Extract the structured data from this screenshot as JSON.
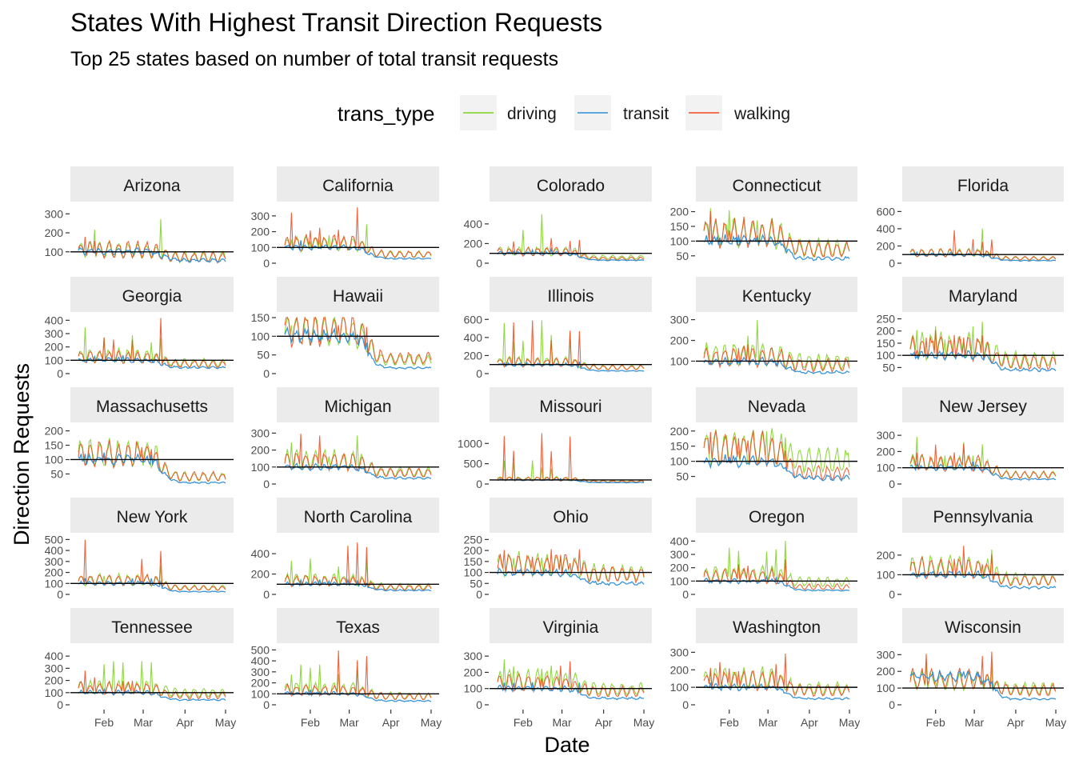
{
  "chart_data": {
    "type": "line",
    "title": "States With Highest Transit Direction Requests",
    "subtitle": "Top 25 states based on number of total transit requests",
    "xlabel": "Date",
    "ylabel": "Direction Requests",
    "legend": {
      "title": "trans_type",
      "position": "top",
      "items": [
        {
          "name": "driving",
          "color": "#7CD11E"
        },
        {
          "name": "transit",
          "color": "#2C8FD6"
        },
        {
          "name": "walking",
          "color": "#F0481A"
        }
      ]
    },
    "reference_line": 100,
    "x_ticks": [
      "Feb",
      "Mar",
      "Apr",
      "May"
    ],
    "x_range": [
      "2020-01-13",
      "2020-05-01"
    ],
    "grid": false,
    "panels": [
      {
        "state": "Arizona",
        "ylim": [
          40,
          335
        ],
        "yticks": [
          100,
          200,
          300
        ],
        "series": [
          {
            "name": "driving",
            "before": 105,
            "after": 72,
            "spike": 330
          },
          {
            "name": "transit",
            "before": 102,
            "after": 55,
            "spike": 120
          },
          {
            "name": "walking",
            "before": 110,
            "after": 70,
            "spike": 210
          }
        ]
      },
      {
        "state": "California",
        "ylim": [
          0,
          355
        ],
        "yticks": [
          0,
          100,
          200,
          300
        ],
        "series": [
          {
            "name": "driving",
            "before": 120,
            "after": 55,
            "spike": 250
          },
          {
            "name": "transit",
            "before": 100,
            "after": 30,
            "spike": 150
          },
          {
            "name": "walking",
            "before": 125,
            "after": 55,
            "spike": 355
          }
        ]
      },
      {
        "state": "Colorado",
        "ylim": [
          0,
          570
        ],
        "yticks": [
          0,
          200,
          400
        ],
        "series": [
          {
            "name": "driving",
            "before": 120,
            "after": 60,
            "spike": 565
          },
          {
            "name": "transit",
            "before": 100,
            "after": 30,
            "spike": 150
          },
          {
            "name": "walking",
            "before": 115,
            "after": 45,
            "spike": 260
          }
        ]
      },
      {
        "state": "Connecticut",
        "ylim": [
          25,
          215
        ],
        "yticks": [
          50,
          100,
          150,
          200
        ],
        "series": [
          {
            "name": "driving",
            "before": 125,
            "after": 75,
            "spike": 215
          },
          {
            "name": "transit",
            "before": 100,
            "after": 40,
            "spike": 130
          },
          {
            "name": "walking",
            "before": 125,
            "after": 70,
            "spike": 210
          }
        ]
      },
      {
        "state": "Florida",
        "ylim": [
          0,
          650
        ],
        "yticks": [
          0,
          200,
          400,
          600
        ],
        "series": [
          {
            "name": "driving",
            "before": 120,
            "after": 55,
            "spike": 645
          },
          {
            "name": "transit",
            "before": 100,
            "after": 30,
            "spike": 140
          },
          {
            "name": "walking",
            "before": 115,
            "after": 55,
            "spike": 390
          }
        ]
      },
      {
        "state": "Georgia",
        "ylim": [
          0,
          420
        ],
        "yticks": [
          0,
          100,
          200,
          300,
          400
        ],
        "series": [
          {
            "name": "driving",
            "before": 130,
            "after": 80,
            "spike": 400
          },
          {
            "name": "transit",
            "before": 100,
            "after": 45,
            "spike": 140
          },
          {
            "name": "walking",
            "before": 120,
            "after": 70,
            "spike": 420
          }
        ]
      },
      {
        "state": "Hawaii",
        "ylim": [
          0,
          150
        ],
        "yticks": [
          0,
          50,
          100,
          150
        ],
        "series": [
          {
            "name": "driving",
            "before": 115,
            "after": 35,
            "spike": 145
          },
          {
            "name": "transit",
            "before": 100,
            "after": 15,
            "spike": 110
          },
          {
            "name": "walking",
            "before": 118,
            "after": 40,
            "spike": 145
          }
        ]
      },
      {
        "state": "Illinois",
        "ylim": [
          0,
          620
        ],
        "yticks": [
          0,
          200,
          400,
          600
        ],
        "series": [
          {
            "name": "driving",
            "before": 130,
            "after": 70,
            "spike": 600
          },
          {
            "name": "transit",
            "before": 100,
            "after": 30,
            "spike": 140
          },
          {
            "name": "walking",
            "before": 120,
            "after": 65,
            "spike": 600
          }
        ]
      },
      {
        "state": "Kentucky",
        "ylim": [
          40,
          310
        ],
        "yticks": [
          100,
          200,
          300
        ],
        "series": [
          {
            "name": "driving",
            "before": 130,
            "after": 95,
            "spike": 305
          },
          {
            "name": "transit",
            "before": 98,
            "after": 45,
            "spike": 120
          },
          {
            "name": "walking",
            "before": 118,
            "after": 80,
            "spike": 200
          }
        ]
      },
      {
        "state": "Maryland",
        "ylim": [
          25,
          255
        ],
        "yticks": [
          50,
          100,
          150,
          200,
          250
        ],
        "series": [
          {
            "name": "driving",
            "before": 135,
            "after": 80,
            "spike": 250
          },
          {
            "name": "transit",
            "before": 100,
            "after": 40,
            "spike": 120
          },
          {
            "name": "walking",
            "before": 125,
            "after": 70,
            "spike": 220
          }
        ]
      },
      {
        "state": "Massachusetts",
        "ylim": [
          15,
          210
        ],
        "yticks": [
          50,
          100,
          150,
          200
        ],
        "series": [
          {
            "name": "driving",
            "before": 120,
            "after": 40,
            "spike": 205
          },
          {
            "name": "transit",
            "before": 100,
            "after": 20,
            "spike": 130
          },
          {
            "name": "walking",
            "before": 118,
            "after": 40,
            "spike": 175
          }
        ]
      },
      {
        "state": "Michigan",
        "ylim": [
          0,
          330
        ],
        "yticks": [
          0,
          100,
          200,
          300
        ],
        "series": [
          {
            "name": "driving",
            "before": 140,
            "after": 70,
            "spike": 290
          },
          {
            "name": "transit",
            "before": 100,
            "after": 35,
            "spike": 130
          },
          {
            "name": "walking",
            "before": 130,
            "after": 65,
            "spike": 325
          }
        ]
      },
      {
        "state": "Missouri",
        "ylim": [
          0,
          1380
        ],
        "yticks": [
          0,
          500,
          1000
        ],
        "series": [
          {
            "name": "driving",
            "before": 130,
            "after": 70,
            "spike": 600
          },
          {
            "name": "transit",
            "before": 100,
            "after": 35,
            "spike": 150
          },
          {
            "name": "walking",
            "before": 120,
            "after": 60,
            "spike": 1370
          }
        ]
      },
      {
        "state": "Nevada",
        "ylim": [
          25,
          210
        ],
        "yticks": [
          50,
          100,
          150,
          200
        ],
        "series": [
          {
            "name": "driving",
            "before": 145,
            "after": 100,
            "spike": 205
          },
          {
            "name": "transit",
            "before": 100,
            "after": 45,
            "spike": 120
          },
          {
            "name": "walking",
            "before": 140,
            "after": 60,
            "spike": 200
          }
        ]
      },
      {
        "state": "New Jersey",
        "ylim": [
          0,
          345
        ],
        "yticks": [
          0,
          100,
          200,
          300
        ],
        "series": [
          {
            "name": "driving",
            "before": 125,
            "after": 55,
            "spike": 300
          },
          {
            "name": "transit",
            "before": 100,
            "after": 30,
            "spike": 140
          },
          {
            "name": "walking",
            "before": 125,
            "after": 55,
            "spike": 340
          }
        ]
      },
      {
        "state": "New York",
        "ylim": [
          0,
          510
        ],
        "yticks": [
          0,
          100,
          200,
          300,
          400,
          500
        ],
        "series": [
          {
            "name": "driving",
            "before": 130,
            "after": 60,
            "spike": 300
          },
          {
            "name": "transit",
            "before": 100,
            "after": 25,
            "spike": 150
          },
          {
            "name": "walking",
            "before": 130,
            "after": 55,
            "spike": 500
          }
        ]
      },
      {
        "state": "North Carolina",
        "ylim": [
          0,
          550
        ],
        "yticks": [
          0,
          200,
          400
        ],
        "series": [
          {
            "name": "driving",
            "before": 140,
            "after": 75,
            "spike": 400
          },
          {
            "name": "transit",
            "before": 100,
            "after": 40,
            "spike": 150
          },
          {
            "name": "walking",
            "before": 130,
            "after": 65,
            "spike": 540
          }
        ]
      },
      {
        "state": "Ohio",
        "ylim": [
          0,
          255
        ],
        "yticks": [
          0,
          50,
          100,
          150,
          200,
          250
        ],
        "series": [
          {
            "name": "driving",
            "before": 135,
            "after": 95,
            "spike": 240
          },
          {
            "name": "transit",
            "before": 100,
            "after": 50,
            "spike": 130
          },
          {
            "name": "walking",
            "before": 130,
            "after": 90,
            "spike": 235
          }
        ]
      },
      {
        "state": "Oregon",
        "ylim": [
          0,
          420
        ],
        "yticks": [
          0,
          100,
          200,
          300,
          400
        ],
        "series": [
          {
            "name": "driving",
            "before": 150,
            "after": 90,
            "spike": 410
          },
          {
            "name": "transit",
            "before": 100,
            "after": 30,
            "spike": 140
          },
          {
            "name": "walking",
            "before": 135,
            "after": 55,
            "spike": 300
          }
        ]
      },
      {
        "state": "Pennsylvania",
        "ylim": [
          0,
          285
        ],
        "yticks": [
          0,
          100,
          200
        ],
        "series": [
          {
            "name": "driving",
            "before": 140,
            "after": 75,
            "spike": 275
          },
          {
            "name": "transit",
            "before": 100,
            "after": 35,
            "spike": 130
          },
          {
            "name": "walking",
            "before": 130,
            "after": 70,
            "spike": 250
          }
        ]
      },
      {
        "state": "Tennessee",
        "ylim": [
          0,
          460
        ],
        "yticks": [
          0,
          100,
          200,
          300,
          400
        ],
        "series": [
          {
            "name": "driving",
            "before": 140,
            "after": 95,
            "spike": 450
          },
          {
            "name": "transit",
            "before": 100,
            "after": 40,
            "spike": 140
          },
          {
            "name": "walking",
            "before": 130,
            "after": 75,
            "spike": 300
          }
        ]
      },
      {
        "state": "Texas",
        "ylim": [
          0,
          510
        ],
        "yticks": [
          0,
          100,
          200,
          300,
          400,
          500
        ],
        "series": [
          {
            "name": "driving",
            "before": 140,
            "after": 80,
            "spike": 380
          },
          {
            "name": "transit",
            "before": 100,
            "after": 35,
            "spike": 140
          },
          {
            "name": "walking",
            "before": 130,
            "after": 75,
            "spike": 500
          }
        ]
      },
      {
        "state": "Virginia",
        "ylim": [
          0,
          345
        ],
        "yticks": [
          0,
          100,
          200,
          300
        ],
        "series": [
          {
            "name": "driving",
            "before": 150,
            "after": 95,
            "spike": 340
          },
          {
            "name": "transit",
            "before": 100,
            "after": 40,
            "spike": 140
          },
          {
            "name": "walking",
            "before": 130,
            "after": 80,
            "spike": 280
          }
        ]
      },
      {
        "state": "Washington",
        "ylim": [
          0,
          320
        ],
        "yticks": [
          0,
          100,
          200,
          300
        ],
        "series": [
          {
            "name": "driving",
            "before": 150,
            "after": 90,
            "spike": 310
          },
          {
            "name": "transit",
            "before": 100,
            "after": 35,
            "spike": 140
          },
          {
            "name": "walking",
            "before": 135,
            "after": 80,
            "spike": 300
          }
        ]
      },
      {
        "state": "Wisconsin",
        "ylim": [
          0,
          335
        ],
        "yticks": [
          0,
          100,
          200,
          300
        ],
        "series": [
          {
            "name": "driving",
            "before": 140,
            "after": 95,
            "spike": 250
          },
          {
            "name": "transit",
            "before": 170,
            "after": 35,
            "spike": 230
          },
          {
            "name": "walking",
            "before": 150,
            "after": 85,
            "spike": 330
          }
        ]
      }
    ]
  }
}
